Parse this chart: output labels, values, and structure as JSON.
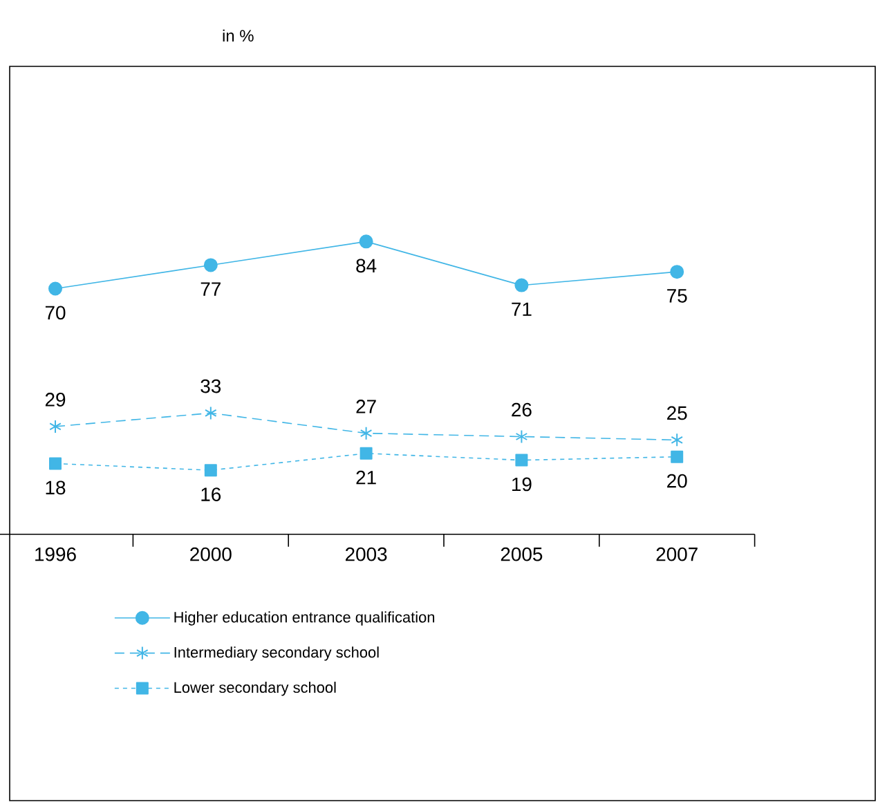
{
  "chart_data": {
    "type": "line",
    "annotations": [
      "in %"
    ],
    "categories": [
      "1996",
      "2000",
      "2003",
      "2005",
      "2007"
    ],
    "series": [
      {
        "name": "Higher education entrance qualification",
        "color": "#41b6e6",
        "values": [
          70,
          77,
          84,
          71,
          75
        ],
        "marker": "circle",
        "line_style": "solid"
      },
      {
        "name": "Intermediary secondary school",
        "color": "#41b6e6",
        "values": [
          29,
          33,
          27,
          26,
          25
        ],
        "marker": "cross",
        "line_style": "dashed"
      },
      {
        "name": "Lower secondary school",
        "color": "#41b6e6",
        "values": [
          18,
          16,
          21,
          19,
          20
        ],
        "marker": "square",
        "line_style": "dotted"
      }
    ],
    "data_labels": true,
    "legend": "bottom",
    "grid": false
  }
}
